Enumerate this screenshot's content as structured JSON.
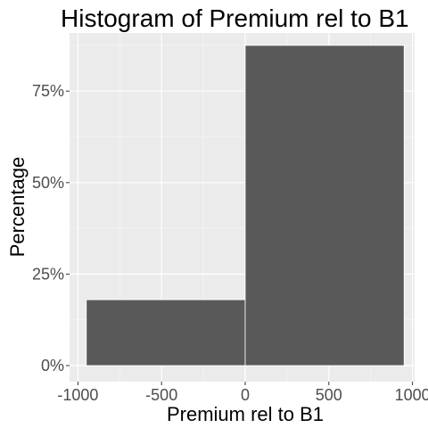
{
  "chart_data": {
    "type": "bar",
    "title": "Histogram of Premium rel to B1",
    "xlabel": "Premium rel to B1",
    "ylabel": "Percentage",
    "bins": [
      {
        "x_start": -950,
        "x_end": 0,
        "value": 0.18
      },
      {
        "x_start": 0,
        "x_end": 950,
        "value": 0.875
      }
    ],
    "xlim": [
      -1000,
      1000
    ],
    "ylim": [
      0,
      0.875
    ],
    "x_ticks": [
      {
        "value": -1000,
        "label": "-1000"
      },
      {
        "value": -500,
        "label": "-500"
      },
      {
        "value": 0,
        "label": "0"
      },
      {
        "value": 500,
        "label": "500"
      },
      {
        "value": 1000,
        "label": "1000"
      }
    ],
    "y_ticks": [
      {
        "value": 0,
        "label": "0%"
      },
      {
        "value": 0.25,
        "label": "25%"
      },
      {
        "value": 0.5,
        "label": "50%"
      },
      {
        "value": 0.75,
        "label": "75%"
      }
    ],
    "grid": true,
    "colors": {
      "bar_fill": "#595959",
      "bar_stroke": "#ffffff",
      "panel_background": "#ebebeb",
      "grid_major": "#ffffff",
      "tick_mark": "#333333"
    }
  }
}
